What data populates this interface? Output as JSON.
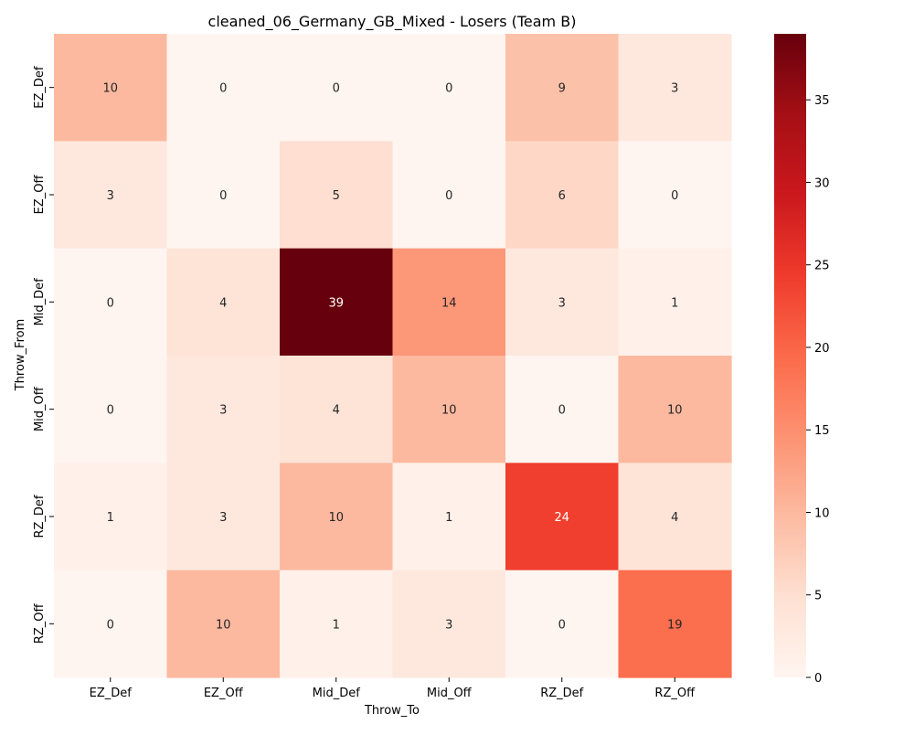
{
  "chart_data": {
    "type": "heatmap",
    "title": "cleaned_06_Germany_GB_Mixed - Losers (Team B)",
    "xlabel": "Throw_To",
    "ylabel": "Throw_From",
    "x_categories": [
      "EZ_Def",
      "EZ_Off",
      "Mid_Def",
      "Mid_Off",
      "RZ_Def",
      "RZ_Off"
    ],
    "y_categories": [
      "EZ_Def",
      "EZ_Off",
      "Mid_Def",
      "Mid_Off",
      "RZ_Def",
      "RZ_Off"
    ],
    "values": [
      [
        10,
        0,
        0,
        0,
        9,
        3
      ],
      [
        3,
        0,
        5,
        0,
        6,
        0
      ],
      [
        0,
        4,
        39,
        14,
        3,
        1
      ],
      [
        0,
        3,
        4,
        10,
        0,
        10
      ],
      [
        1,
        3,
        10,
        1,
        24,
        4
      ],
      [
        0,
        10,
        1,
        3,
        0,
        19
      ]
    ],
    "colormap": "Reds",
    "colorbar": {
      "range": [
        0,
        39
      ],
      "ticks": [
        0,
        5,
        10,
        15,
        20,
        25,
        30,
        35
      ]
    },
    "annotations": true,
    "grid": false
  }
}
